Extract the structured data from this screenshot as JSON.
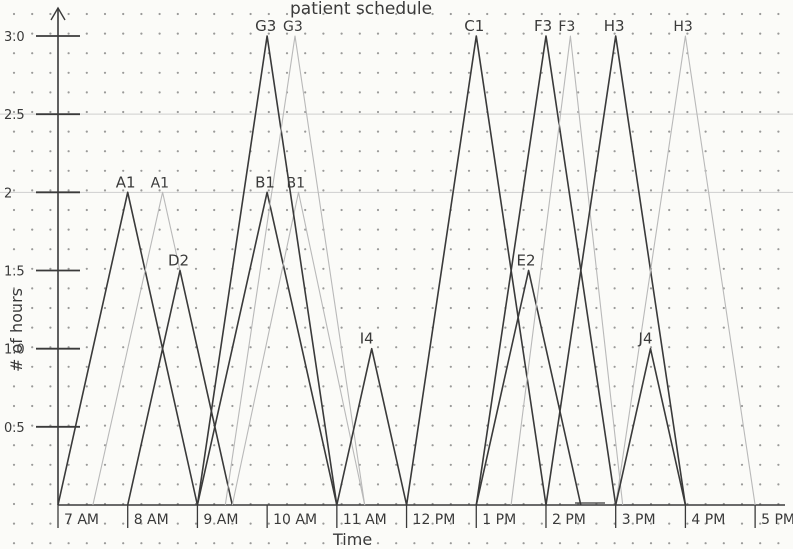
{
  "chart_data": {
    "type": "line",
    "title": "patient schedule",
    "xlabel": "Time",
    "ylabel": "# of hours",
    "ylim": [
      0,
      3.0
    ],
    "yticks": [
      {
        "value": 0.5,
        "label": "0.5"
      },
      {
        "value": 1.0,
        "label": "1.0"
      },
      {
        "value": 1.5,
        "label": "1.5"
      },
      {
        "value": 2.0,
        "label": "2"
      },
      {
        "value": 2.5,
        "label": "2.5"
      },
      {
        "value": 3.0,
        "label": "3.0"
      }
    ],
    "xticks": [
      "7 AM",
      "8 AM",
      "9 AM",
      "10 AM",
      "11 AM",
      "12 PM",
      "1 PM",
      "2 PM",
      "3 PM",
      "4 PM",
      "5 PM"
    ],
    "xrange": [
      7,
      17.4
    ],
    "series": [
      {
        "name": "A1",
        "faint": false,
        "points": [
          [
            7.0,
            0
          ],
          [
            8.0,
            2.0
          ],
          [
            9.0,
            0
          ]
        ]
      },
      {
        "name": "A1",
        "faint": true,
        "points": [
          [
            7.5,
            0
          ],
          [
            8.5,
            2.0
          ],
          [
            9.5,
            0
          ]
        ]
      },
      {
        "name": "D2",
        "faint": false,
        "points": [
          [
            8.0,
            0
          ],
          [
            8.75,
            1.5
          ],
          [
            9.5,
            0
          ]
        ]
      },
      {
        "name": "B1",
        "faint": false,
        "points": [
          [
            9.0,
            0
          ],
          [
            10.0,
            2.0
          ],
          [
            11.0,
            0
          ]
        ]
      },
      {
        "name": "B1",
        "faint": true,
        "points": [
          [
            9.5,
            0
          ],
          [
            10.45,
            2.0
          ],
          [
            11.4,
            0
          ]
        ]
      },
      {
        "name": "G3",
        "faint": false,
        "points": [
          [
            9.0,
            0
          ],
          [
            10.0,
            3.0
          ],
          [
            11.0,
            0
          ]
        ]
      },
      {
        "name": "G3",
        "faint": true,
        "points": [
          [
            9.4,
            0
          ],
          [
            10.4,
            3.0
          ],
          [
            11.4,
            0
          ]
        ]
      },
      {
        "name": "I4",
        "faint": false,
        "points": [
          [
            11.0,
            0
          ],
          [
            11.5,
            1.0
          ],
          [
            12.0,
            0
          ]
        ]
      },
      {
        "name": "C1",
        "faint": false,
        "points": [
          [
            12.0,
            0
          ],
          [
            13.0,
            3.0
          ],
          [
            14.0,
            0
          ]
        ]
      },
      {
        "name": "E2",
        "faint": false,
        "points": [
          [
            13.0,
            0
          ],
          [
            13.75,
            1.5
          ],
          [
            14.5,
            0
          ]
        ]
      },
      {
        "name": "F3",
        "faint": false,
        "points": [
          [
            13.0,
            0
          ],
          [
            14.0,
            3.0
          ],
          [
            15.0,
            0
          ]
        ]
      },
      {
        "name": "F3",
        "faint": true,
        "points": [
          [
            13.5,
            0
          ],
          [
            14.35,
            3.0
          ],
          [
            15.1,
            0
          ]
        ]
      },
      {
        "name": "H3",
        "faint": false,
        "points": [
          [
            14.0,
            0
          ],
          [
            15.0,
            3.0
          ],
          [
            16.0,
            0
          ]
        ]
      },
      {
        "name": "H3",
        "faint": true,
        "points": [
          [
            15.0,
            0
          ],
          [
            16.0,
            3.0
          ],
          [
            17.0,
            0
          ]
        ]
      },
      {
        "name": "J4",
        "faint": false,
        "points": [
          [
            15.0,
            0
          ],
          [
            15.5,
            1.0
          ],
          [
            16.0,
            0
          ]
        ]
      }
    ],
    "peak_labels": [
      {
        "text": "A1",
        "x": 8.0,
        "y": 2.0,
        "faint": false
      },
      {
        "text": "A1",
        "x": 8.5,
        "y": 2.0,
        "faint": true
      },
      {
        "text": "D2",
        "x": 8.75,
        "y": 1.5,
        "faint": false
      },
      {
        "text": "B1",
        "x": 10.0,
        "y": 2.0,
        "faint": false
      },
      {
        "text": "B1",
        "x": 10.45,
        "y": 2.0,
        "faint": true
      },
      {
        "text": "G3",
        "x": 10.0,
        "y": 3.0,
        "faint": false
      },
      {
        "text": "G3",
        "x": 10.4,
        "y": 3.0,
        "faint": true
      },
      {
        "text": "I4",
        "x": 11.5,
        "y": 1.0,
        "faint": false
      },
      {
        "text": "C1",
        "x": 13.0,
        "y": 3.0,
        "faint": false
      },
      {
        "text": "E2",
        "x": 13.75,
        "y": 1.5,
        "faint": false
      },
      {
        "text": "F3",
        "x": 14.0,
        "y": 3.0,
        "faint": false
      },
      {
        "text": "F3",
        "x": 14.35,
        "y": 3.0,
        "faint": true
      },
      {
        "text": "H3",
        "x": 15.0,
        "y": 3.0,
        "faint": false
      },
      {
        "text": "H3",
        "x": 16.0,
        "y": 3.0,
        "faint": true
      },
      {
        "text": "J4",
        "x": 15.5,
        "y": 1.0,
        "faint": false
      }
    ],
    "grid": "dot grid",
    "colors": {
      "ink": "#3a3a3a",
      "faint": "#b9b9b9",
      "paper": "#fbfbf8",
      "dot": "#4a4a4a",
      "guide": "#cfcfcf"
    }
  }
}
